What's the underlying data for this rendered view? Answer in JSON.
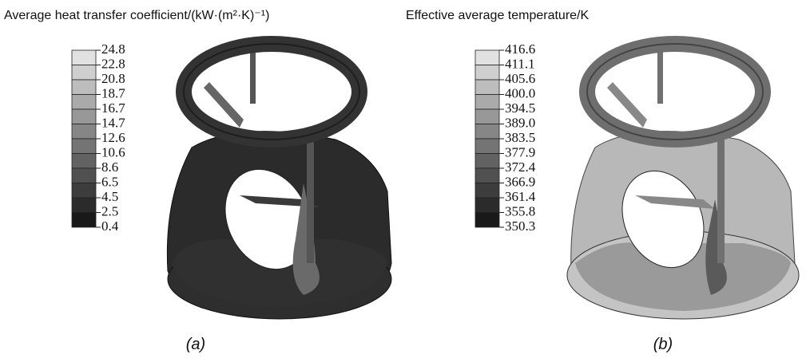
{
  "panels": [
    {
      "title": "Average heat transfer coefficient/(kW·(m²·K)⁻¹)",
      "legend": [
        "24.8",
        "22.8",
        "20.8",
        "18.7",
        "16.7",
        "14.7",
        "12.6",
        "10.6",
        "8.6",
        "6.5",
        "4.5",
        "2.5",
        "0.4"
      ],
      "caption": "(a)"
    },
    {
      "title": "Effective average temperature/K",
      "legend": [
        "416.6",
        "411.1",
        "405.6",
        "400.0",
        "394.5",
        "389.0",
        "383.5",
        "377.9",
        "372.4",
        "366.9",
        "361.4",
        "355.8",
        "350.3"
      ],
      "caption": "(b)"
    }
  ]
}
